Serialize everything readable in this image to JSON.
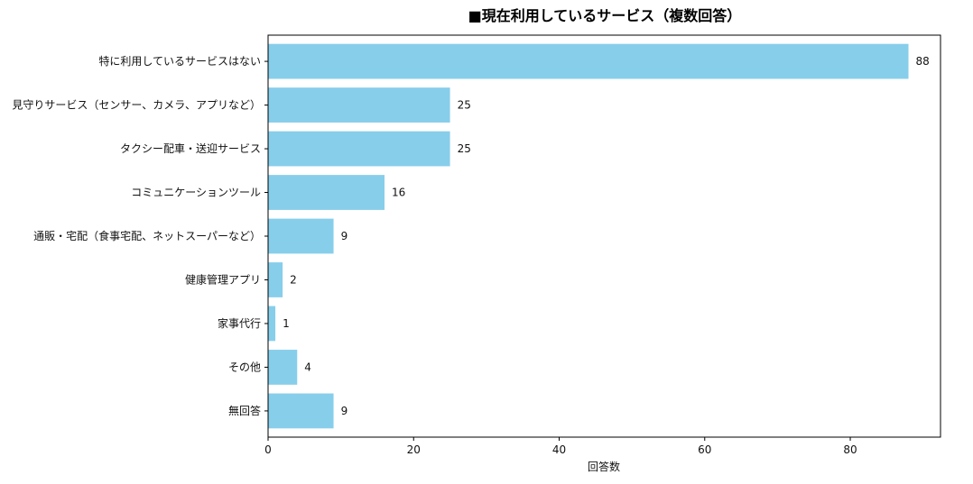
{
  "chart_data": {
    "type": "bar",
    "orientation": "horizontal",
    "title": "■現在利用しているサービス（複数回答）",
    "xlabel": "回答数",
    "ylabel": "",
    "categories": [
      "特に利用しているサービスはない",
      "見守りサービス（センサー、カメラ、アプリなど）",
      "タクシー配車・送迎サービス",
      "コミュニケーションツール",
      "通販・宅配（食事宅配、ネットスーパーなど）",
      "健康管理アプリ",
      "家事代行",
      "その他",
      "無回答"
    ],
    "values": [
      88,
      25,
      25,
      16,
      9,
      2,
      1,
      4,
      9
    ],
    "xlim": [
      0,
      92.4
    ],
    "xticks": [
      0,
      20,
      40,
      60,
      80
    ],
    "grid": false,
    "bar_color": "#87CEEB",
    "data_labels": true
  }
}
